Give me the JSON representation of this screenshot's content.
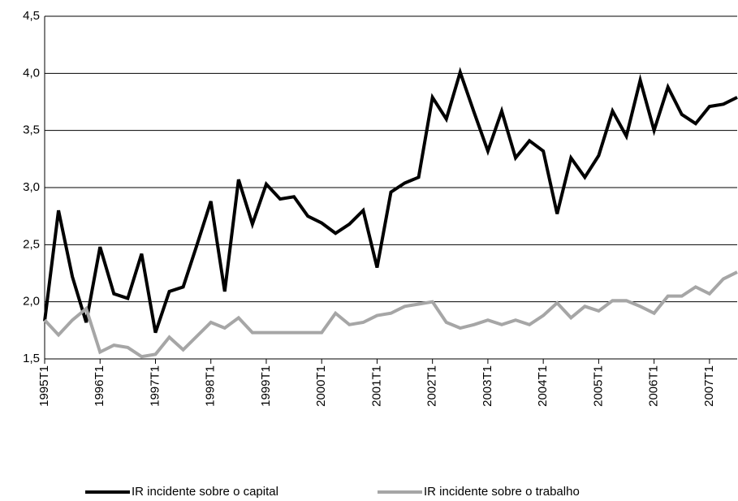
{
  "chart_data": {
    "type": "line",
    "categories": [
      "1995T1",
      null,
      null,
      null,
      "1996T1",
      null,
      null,
      null,
      "1997T1",
      null,
      null,
      null,
      "1998T1",
      null,
      null,
      null,
      "1999T1",
      null,
      null,
      null,
      "2000T1",
      null,
      null,
      null,
      "2001T1",
      null,
      null,
      null,
      "2002T1",
      null,
      null,
      null,
      "2003T1",
      null,
      null,
      null,
      "2004T1",
      null,
      null,
      null,
      "2005T1",
      null,
      null,
      null,
      "2006T1",
      null,
      null,
      null,
      "2007T1",
      null,
      null
    ],
    "series": [
      {
        "name": "IR incidente sobre o capital",
        "color": "#000000",
        "values": [
          1.83,
          2.8,
          2.22,
          1.82,
          2.48,
          2.07,
          2.03,
          2.42,
          1.73,
          2.09,
          2.13,
          2.5,
          2.88,
          2.09,
          3.07,
          2.68,
          3.03,
          2.9,
          2.92,
          2.75,
          2.69,
          2.6,
          2.68,
          2.8,
          2.3,
          2.96,
          3.04,
          3.09,
          3.79,
          3.6,
          4.01,
          3.66,
          3.32,
          3.67,
          3.26,
          3.41,
          3.32,
          2.77,
          3.26,
          3.09,
          3.28,
          3.67,
          3.45,
          3.94,
          3.5,
          3.88,
          3.64,
          3.56,
          3.71,
          3.73,
          3.79
        ]
      },
      {
        "name": "IR incidente sobre o trabalho",
        "color": "#a6a6a6",
        "values": [
          1.84,
          1.71,
          1.84,
          1.94,
          1.56,
          1.62,
          1.6,
          1.52,
          1.54,
          1.69,
          1.58,
          1.7,
          1.82,
          1.77,
          1.86,
          1.73,
          1.73,
          1.73,
          1.73,
          1.73,
          1.73,
          1.9,
          1.8,
          1.82,
          1.88,
          1.9,
          1.96,
          1.98,
          2.0,
          1.82,
          1.77,
          1.8,
          1.84,
          1.8,
          1.84,
          1.8,
          1.88,
          1.99,
          1.86,
          1.96,
          1.92,
          2.01,
          2.01,
          1.96,
          1.9,
          2.05,
          2.05,
          2.13,
          2.07,
          2.2,
          2.26
        ]
      }
    ],
    "ylim": [
      1.5,
      4.5
    ],
    "yticks": [
      {
        "value": 1.5,
        "label": "1,5"
      },
      {
        "value": 2.0,
        "label": "2,0"
      },
      {
        "value": 2.5,
        "label": "2,5"
      },
      {
        "value": 3.0,
        "label": "3,0"
      },
      {
        "value": 3.5,
        "label": "3,5"
      },
      {
        "value": 4.0,
        "label": "4,0"
      },
      {
        "value": 4.5,
        "label": "4,5"
      }
    ],
    "grid": true,
    "legend": "bottom"
  }
}
